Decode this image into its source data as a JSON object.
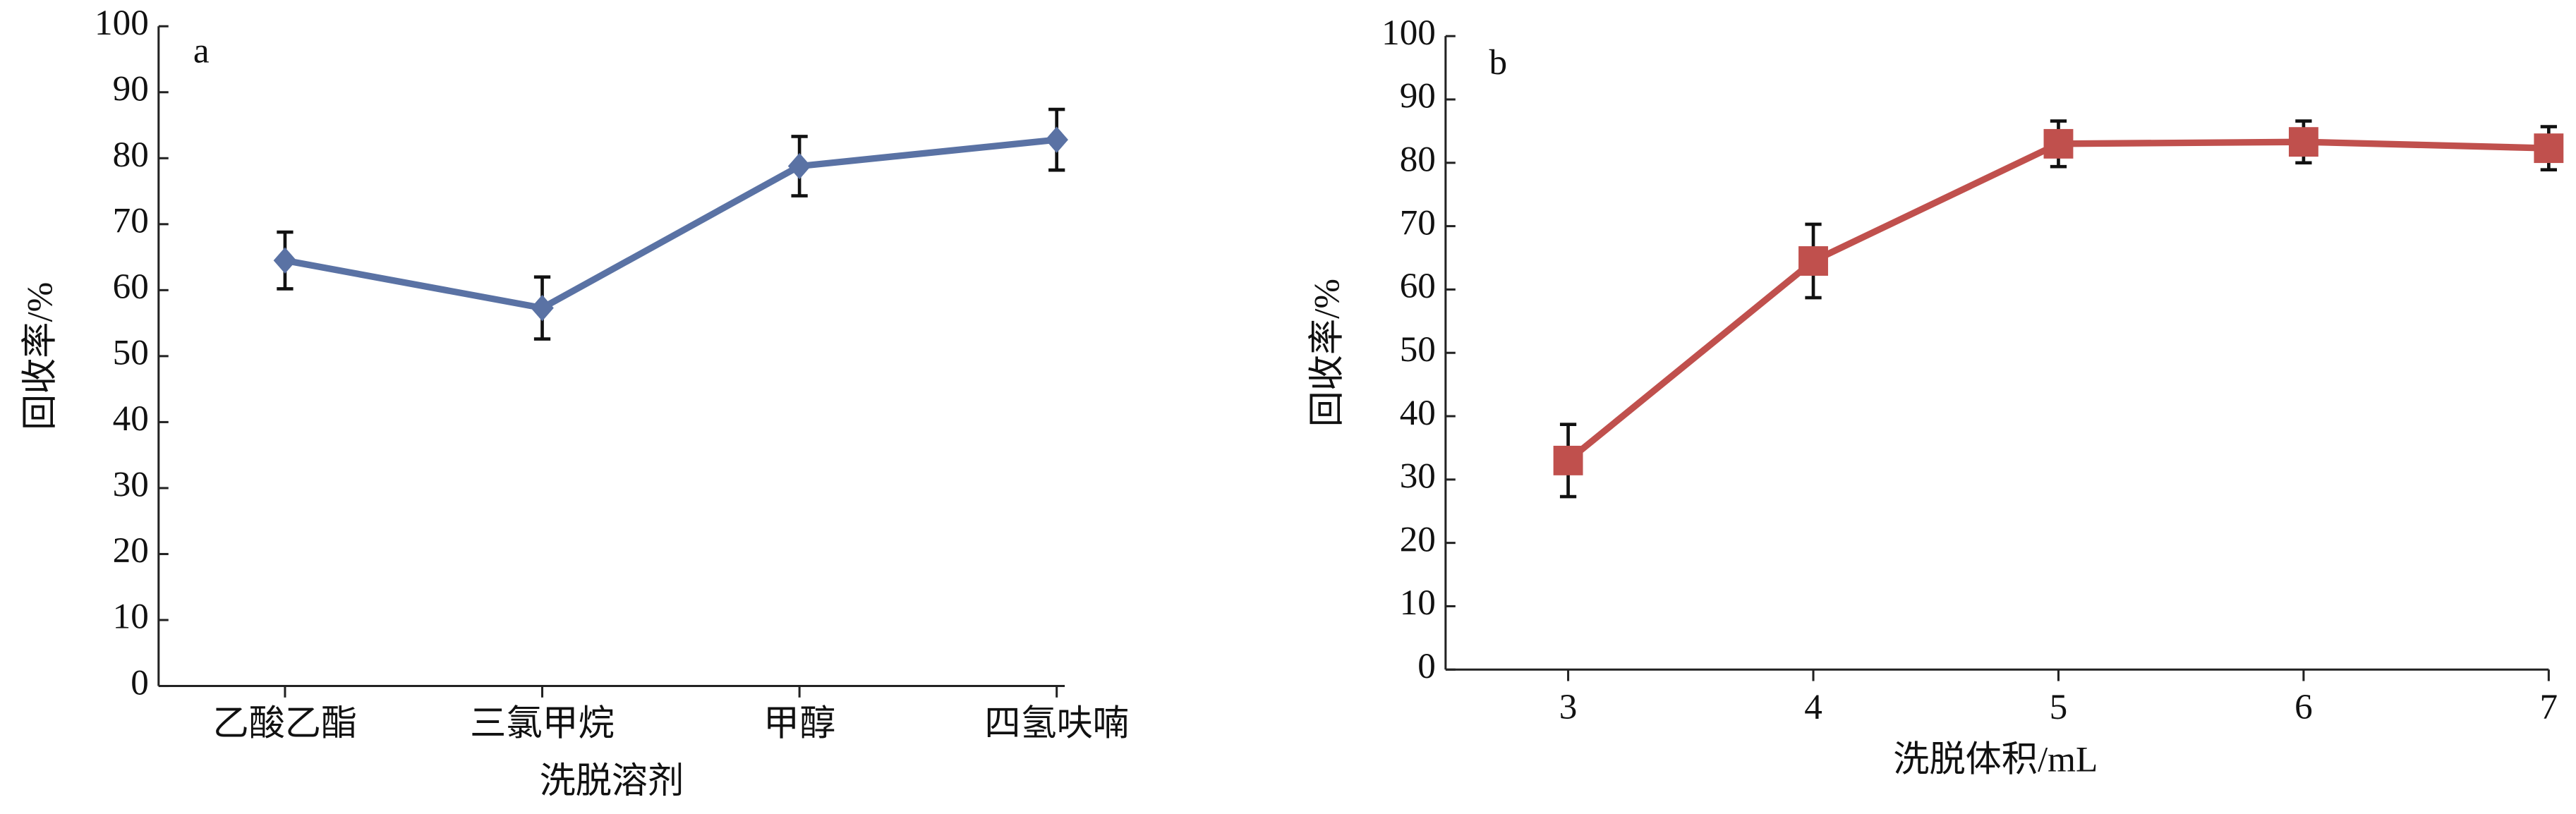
{
  "chart_data": [
    {
      "type": "line",
      "panel_label": "a",
      "x_label": "洗脱溶剂",
      "y_label": "回收率/%",
      "categories": [
        "乙酸乙酯",
        "三氯甲烷",
        "甲醇",
        "四氢呋喃"
      ],
      "series": [
        {
          "color": "#5a72a4",
          "marker": "diamond",
          "values": [
            64.5,
            57.3,
            78.8,
            82.8
          ],
          "errors": [
            4.3,
            4.7,
            4.5,
            4.6
          ]
        }
      ],
      "ylim": [
        0,
        100
      ],
      "yticks": [
        0,
        10,
        20,
        30,
        40,
        50,
        60,
        70,
        80,
        90,
        100
      ]
    },
    {
      "type": "line",
      "panel_label": "b",
      "x_label": "洗脱体积/mL",
      "y_label": "回收率/%",
      "x": [
        3,
        4,
        5,
        6,
        7
      ],
      "series": [
        {
          "color": "#c0504d",
          "marker": "square",
          "values": [
            33,
            64.5,
            83,
            83.3,
            82.3
          ],
          "errors": [
            5.7,
            5.8,
            3.6,
            3.3,
            3.4
          ]
        }
      ],
      "xlim": [
        2.5,
        7
      ],
      "xticks": [
        3,
        4,
        5,
        6,
        7
      ],
      "ylim": [
        0,
        100
      ],
      "yticks": [
        0,
        10,
        20,
        30,
        40,
        50,
        60,
        70,
        80,
        90,
        100
      ]
    }
  ]
}
